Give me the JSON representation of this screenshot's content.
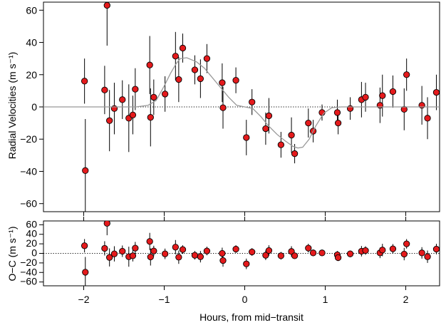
{
  "chart_data": [
    {
      "type": "scatter",
      "panel": "main",
      "title": "",
      "xlabel": "Hours, from mid−transit",
      "ylabel": "Radial Velocities (m s⁻¹)",
      "xlim": [
        -2.5,
        2.42
      ],
      "ylim": [
        -65,
        65
      ],
      "xticks": [
        -2,
        -1,
        0,
        1,
        2
      ],
      "xtick_labels": [
        "−2",
        "−1",
        "0",
        "1",
        "2"
      ],
      "yticks": [
        -60,
        -40,
        -20,
        0,
        20,
        40,
        60
      ],
      "ytick_labels": [
        "−60",
        "−40",
        "−20",
        "0",
        "20",
        "40",
        "60"
      ],
      "reference_line": 0,
      "grid": false,
      "legend": "none",
      "colors": {
        "marker_fill": "#e41a1c",
        "marker_edge": "#000000",
        "model": "#999999",
        "errorbar": "#000000"
      },
      "series": [
        {
          "kind": "observations",
          "points": [
            {
              "x": -1.99,
              "y": 16,
              "err": 14
            },
            {
              "x": -1.98,
              "y": -39.5,
              "err": 32
            },
            {
              "x": -1.74,
              "y": 10.5,
              "err": 15
            },
            {
              "x": -1.71,
              "y": 63,
              "err": 25
            },
            {
              "x": -1.68,
              "y": -8.5,
              "err": 19
            },
            {
              "x": -1.62,
              "y": -1,
              "err": 16
            },
            {
              "x": -1.52,
              "y": 4.5,
              "err": 12
            },
            {
              "x": -1.44,
              "y": -7,
              "err": 21
            },
            {
              "x": -1.39,
              "y": -5,
              "err": 12
            },
            {
              "x": -1.36,
              "y": 11,
              "err": 13
            },
            {
              "x": -1.18,
              "y": 26,
              "err": 18
            },
            {
              "x": -1.17,
              "y": -6.5,
              "err": 18
            },
            {
              "x": -1.13,
              "y": 6,
              "err": 11
            },
            {
              "x": -0.99,
              "y": 8,
              "err": 11
            },
            {
              "x": -0.86,
              "y": 31.5,
              "err": 15
            },
            {
              "x": -0.82,
              "y": 17,
              "err": 14
            },
            {
              "x": -0.77,
              "y": 36.5,
              "err": 9
            },
            {
              "x": -0.62,
              "y": 23,
              "err": 9
            },
            {
              "x": -0.55,
              "y": 17.5,
              "err": 12
            },
            {
              "x": -0.47,
              "y": 30,
              "err": 9
            },
            {
              "x": -0.28,
              "y": 15,
              "err": 12
            },
            {
              "x": -0.27,
              "y": -0.5,
              "err": 13
            },
            {
              "x": -0.11,
              "y": 16.5,
              "err": 8
            },
            {
              "x": 0.02,
              "y": -19,
              "err": 11
            },
            {
              "x": 0.09,
              "y": 3,
              "err": 8
            },
            {
              "x": 0.26,
              "y": -13.5,
              "err": 10
            },
            {
              "x": 0.3,
              "y": -5.5,
              "err": 11
            },
            {
              "x": 0.45,
              "y": -23.5,
              "err": 8
            },
            {
              "x": 0.58,
              "y": -17.5,
              "err": 11
            },
            {
              "x": 0.62,
              "y": -29,
              "err": 6
            },
            {
              "x": 0.79,
              "y": -10,
              "err": 9
            },
            {
              "x": 0.85,
              "y": -15,
              "err": 7
            },
            {
              "x": 0.96,
              "y": -3.5,
              "err": 5
            },
            {
              "x": 1.15,
              "y": -3.5,
              "err": 8
            },
            {
              "x": 1.16,
              "y": -10,
              "err": 7
            },
            {
              "x": 1.31,
              "y": -1,
              "err": 7
            },
            {
              "x": 1.45,
              "y": 4.5,
              "err": 11
            },
            {
              "x": 1.5,
              "y": 6,
              "err": 9
            },
            {
              "x": 1.68,
              "y": 1,
              "err": 11
            },
            {
              "x": 1.71,
              "y": 7,
              "err": 13
            },
            {
              "x": 1.84,
              "y": 9.5,
              "err": 10
            },
            {
              "x": 1.98,
              "y": -1.5,
              "err": 13
            },
            {
              "x": 2.01,
              "y": 20,
              "err": 10
            },
            {
              "x": 2.2,
              "y": 1,
              "err": 12
            },
            {
              "x": 2.27,
              "y": -7,
              "err": 13
            },
            {
              "x": 2.38,
              "y": 9,
              "err": 11
            }
          ]
        },
        {
          "kind": "model",
          "x": [
            -2.5,
            -1.35,
            -1.2,
            -1.1,
            -1.0,
            -0.92,
            -0.85,
            -0.8,
            -0.72,
            -0.6,
            -0.5,
            -0.4,
            -0.3,
            -0.2,
            -0.1,
            0.0,
            0.1,
            0.2,
            0.3,
            0.4,
            0.5,
            0.6,
            0.66,
            0.72,
            0.8,
            0.88,
            0.98,
            1.08,
            1.2,
            1.35,
            2.42
          ],
          "y": [
            0,
            0,
            1,
            4,
            13,
            21,
            27,
            30,
            30.5,
            28,
            24,
            18,
            12,
            6,
            1,
            0,
            -1,
            -6,
            -12,
            -17,
            -21,
            -24.5,
            -25.5,
            -25,
            -20,
            -12,
            -4,
            -0.5,
            0,
            0,
            0
          ]
        }
      ]
    },
    {
      "type": "scatter",
      "panel": "residuals",
      "title": "",
      "xlabel": "Hours, from mid−transit",
      "ylabel": "O−C (m s⁻¹)",
      "xlim": [
        -2.5,
        2.42
      ],
      "ylim": [
        -68,
        68
      ],
      "xticks": [
        -2,
        -1,
        0,
        1,
        2
      ],
      "yticks": [
        -60,
        -40,
        -20,
        0,
        20,
        40,
        60
      ],
      "ytick_labels": [
        "−60",
        "−40",
        "−20",
        "0",
        "20",
        "40",
        "60"
      ],
      "reference_line": 0,
      "grid": false,
      "legend": "none",
      "series": [
        {
          "kind": "residuals",
          "points": [
            {
              "x": -1.99,
              "y": 16,
              "err": 14
            },
            {
              "x": -1.98,
              "y": -39.5,
              "err": 32
            },
            {
              "x": -1.74,
              "y": 10.5,
              "err": 15
            },
            {
              "x": -1.71,
              "y": 63,
              "err": 25
            },
            {
              "x": -1.68,
              "y": -8.5,
              "err": 19
            },
            {
              "x": -1.62,
              "y": -1,
              "err": 16
            },
            {
              "x": -1.52,
              "y": 4.5,
              "err": 12
            },
            {
              "x": -1.44,
              "y": -7,
              "err": 21
            },
            {
              "x": -1.39,
              "y": -5,
              "err": 12
            },
            {
              "x": -1.36,
              "y": 11,
              "err": 13
            },
            {
              "x": -1.18,
              "y": 25,
              "err": 18
            },
            {
              "x": -1.17,
              "y": -7.5,
              "err": 18
            },
            {
              "x": -1.13,
              "y": 5,
              "err": 11
            },
            {
              "x": -0.99,
              "y": -1,
              "err": 11
            },
            {
              "x": -0.86,
              "y": 13,
              "err": 15
            },
            {
              "x": -0.82,
              "y": -8,
              "err": 14
            },
            {
              "x": -0.77,
              "y": 8,
              "err": 9
            },
            {
              "x": -0.62,
              "y": -4,
              "err": 9
            },
            {
              "x": -0.55,
              "y": -7,
              "err": 12
            },
            {
              "x": -0.47,
              "y": 5,
              "err": 9
            },
            {
              "x": -0.28,
              "y": 0,
              "err": 12
            },
            {
              "x": -0.27,
              "y": -15,
              "err": 13
            },
            {
              "x": -0.11,
              "y": 9,
              "err": 8
            },
            {
              "x": 0.02,
              "y": -22,
              "err": 11
            },
            {
              "x": 0.09,
              "y": 3,
              "err": 8
            },
            {
              "x": 0.26,
              "y": -4,
              "err": 10
            },
            {
              "x": 0.3,
              "y": 6,
              "err": 11
            },
            {
              "x": 0.45,
              "y": -5,
              "err": 8
            },
            {
              "x": 0.58,
              "y": 4,
              "err": 11
            },
            {
              "x": 0.62,
              "y": -5,
              "err": 6
            },
            {
              "x": 0.79,
              "y": 11,
              "err": 9
            },
            {
              "x": 0.85,
              "y": 1,
              "err": 7
            },
            {
              "x": 0.96,
              "y": 1,
              "err": 5
            },
            {
              "x": 1.15,
              "y": -3,
              "err": 8
            },
            {
              "x": 1.16,
              "y": -9,
              "err": 7
            },
            {
              "x": 1.31,
              "y": -1,
              "err": 7
            },
            {
              "x": 1.45,
              "y": 4.5,
              "err": 11
            },
            {
              "x": 1.5,
              "y": 6,
              "err": 9
            },
            {
              "x": 1.68,
              "y": 1,
              "err": 11
            },
            {
              "x": 1.71,
              "y": 7,
              "err": 13
            },
            {
              "x": 1.84,
              "y": 9.5,
              "err": 10
            },
            {
              "x": 1.98,
              "y": -1.5,
              "err": 13
            },
            {
              "x": 2.01,
              "y": 20,
              "err": 10
            },
            {
              "x": 2.2,
              "y": 1,
              "err": 12
            },
            {
              "x": 2.27,
              "y": -7,
              "err": 13
            },
            {
              "x": 2.38,
              "y": 9,
              "err": 11
            }
          ]
        }
      ]
    }
  ]
}
